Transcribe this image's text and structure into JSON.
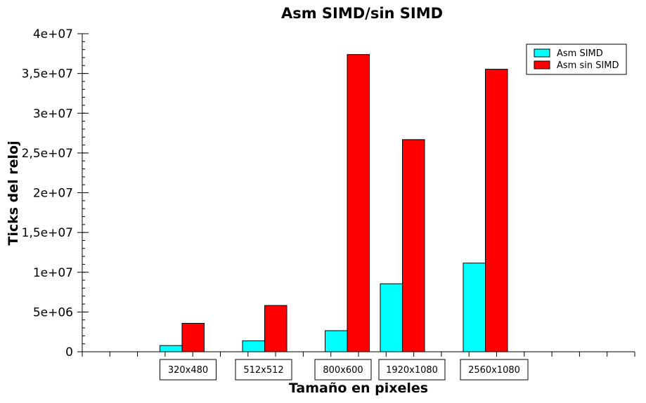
{
  "chart_data": {
    "type": "bar",
    "title": "Asm SIMD/sin SIMD",
    "xlabel": "Tamaño en pixeles",
    "ylabel": "Ticks del reloj",
    "categories": [
      "320x480",
      "512x512",
      "800x600",
      "1920x1080",
      "2560x1080"
    ],
    "series": [
      {
        "name": "Asm SIMD",
        "color": "#00ffff",
        "values": [
          780000,
          1380000,
          2650000,
          8550000,
          11150000
        ]
      },
      {
        "name": "Asm sin SIMD",
        "color": "#ff0000",
        "values": [
          3580000,
          5820000,
          37380000,
          26680000,
          35530000
        ]
      }
    ],
    "ylim": [
      0,
      40000000
    ],
    "yticks": [
      0,
      5000000,
      10000000,
      15000000,
      20000000,
      25000000,
      30000000,
      35000000,
      40000000
    ],
    "ytick_labels": [
      "0",
      "5e+06",
      "1e+07",
      "1,5e+07",
      "2e+07",
      "2,5e+07",
      "3e+07",
      "3,5e+07",
      "4e+07"
    ],
    "grid": false,
    "legend": "top-right"
  }
}
